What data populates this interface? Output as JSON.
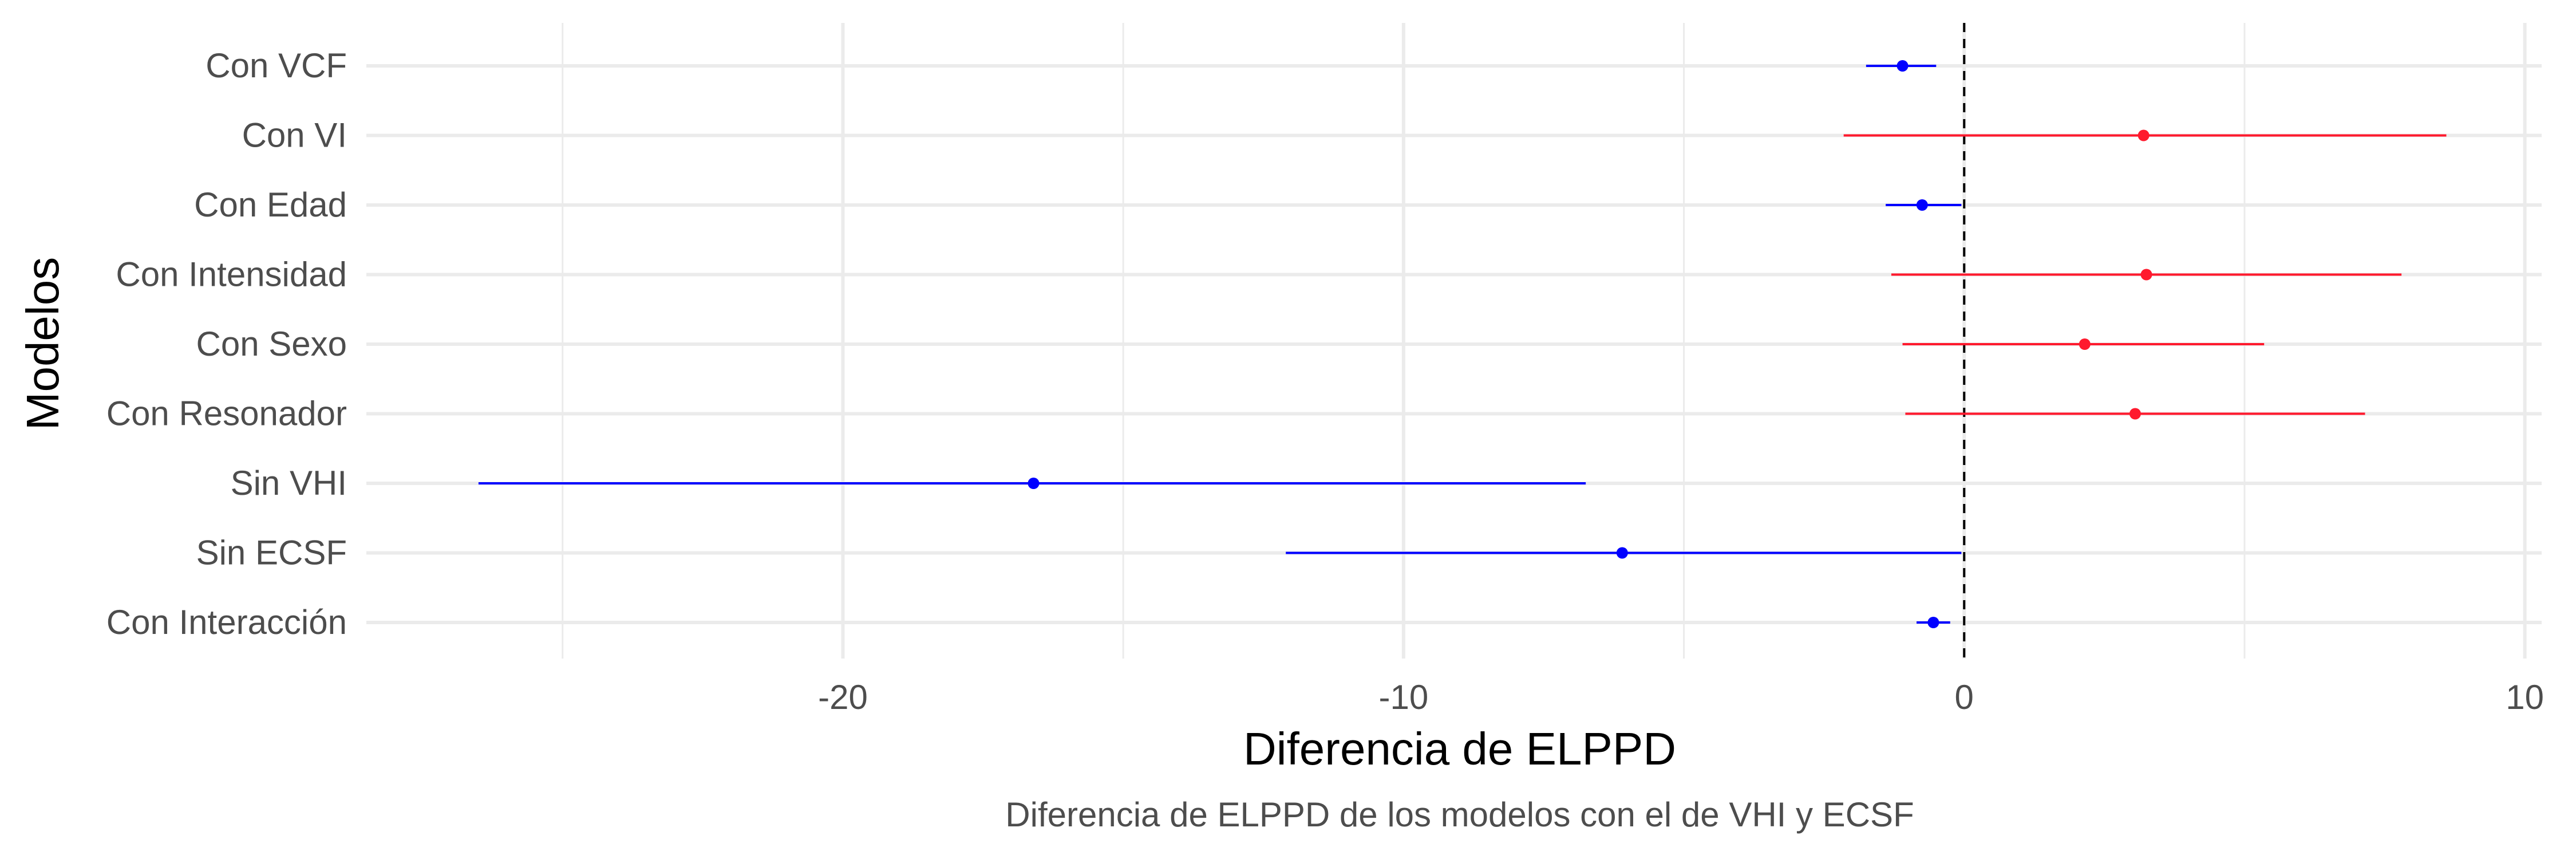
{
  "chart_data": {
    "type": "forest",
    "title": "",
    "caption": "Diferencia de ELPPD de los modelos con el de VHI y ECSF",
    "xlabel": "Diferencia de ELPPD",
    "ylabel": "Modelos",
    "xlim": [
      -28.5,
      10.3
    ],
    "x_ticks": [
      -20,
      -10,
      0,
      10
    ],
    "x_tick_labels": [
      "-20",
      "-10",
      "0",
      "10"
    ],
    "reference_line": {
      "x": 0,
      "style": "dashed",
      "color": "#000000"
    },
    "grid": true,
    "colors": {
      "negative": "#0000ff",
      "positive": "#ff1a2e"
    },
    "models": [
      {
        "label": "Con VCF",
        "estimate": -1.1,
        "lower": -1.75,
        "upper": -0.5,
        "group": "negative"
      },
      {
        "label": "Con VI",
        "estimate": 3.2,
        "lower": -2.15,
        "upper": 8.6,
        "group": "positive"
      },
      {
        "label": "Con Edad",
        "estimate": -0.75,
        "lower": -1.4,
        "upper": -0.05,
        "group": "negative"
      },
      {
        "label": "Con Intensidad",
        "estimate": 3.25,
        "lower": -1.3,
        "upper": 7.8,
        "group": "positive"
      },
      {
        "label": "Con Sexo",
        "estimate": 2.15,
        "lower": -1.1,
        "upper": 5.35,
        "group": "positive"
      },
      {
        "label": "Con Resonador",
        "estimate": 3.05,
        "lower": -1.05,
        "upper": 7.15,
        "group": "positive"
      },
      {
        "label": "Sin VHI",
        "estimate": -16.6,
        "lower": -26.5,
        "upper": -6.75,
        "group": "negative"
      },
      {
        "label": "Sin ECSF",
        "estimate": -6.1,
        "lower": -12.1,
        "upper": -0.05,
        "group": "negative"
      },
      {
        "label": "Con Interacción",
        "estimate": -0.55,
        "lower": -0.85,
        "upper": -0.25,
        "group": "negative"
      }
    ]
  }
}
